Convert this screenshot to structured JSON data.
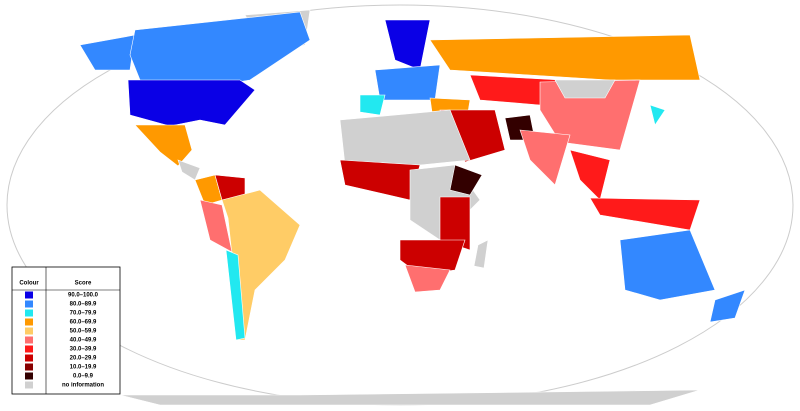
{
  "legend": {
    "header": {
      "colour": "Colour",
      "score": "Score"
    },
    "rows": [
      {
        "label": "90.0–100.0",
        "color": "#0a00e6"
      },
      {
        "label": "80.0–89.9",
        "color": "#3388ff"
      },
      {
        "label": "70.0–79.9",
        "color": "#22e8f0"
      },
      {
        "label": "60.0–69.9",
        "color": "#ff9900"
      },
      {
        "label": "50.0–59.9",
        "color": "#ffcc66"
      },
      {
        "label": "40.0–49.9",
        "color": "#ff6f6f"
      },
      {
        "label": "30.0–39.9",
        "color": "#ff1a1a"
      },
      {
        "label": "20.0–29.9",
        "color": "#cc0000"
      },
      {
        "label": "10.0–19.9",
        "color": "#880000"
      },
      {
        "label": "0.0–9.9",
        "color": "#330000"
      },
      {
        "label": "no information",
        "color": "#d0d0d0"
      }
    ]
  }
}
